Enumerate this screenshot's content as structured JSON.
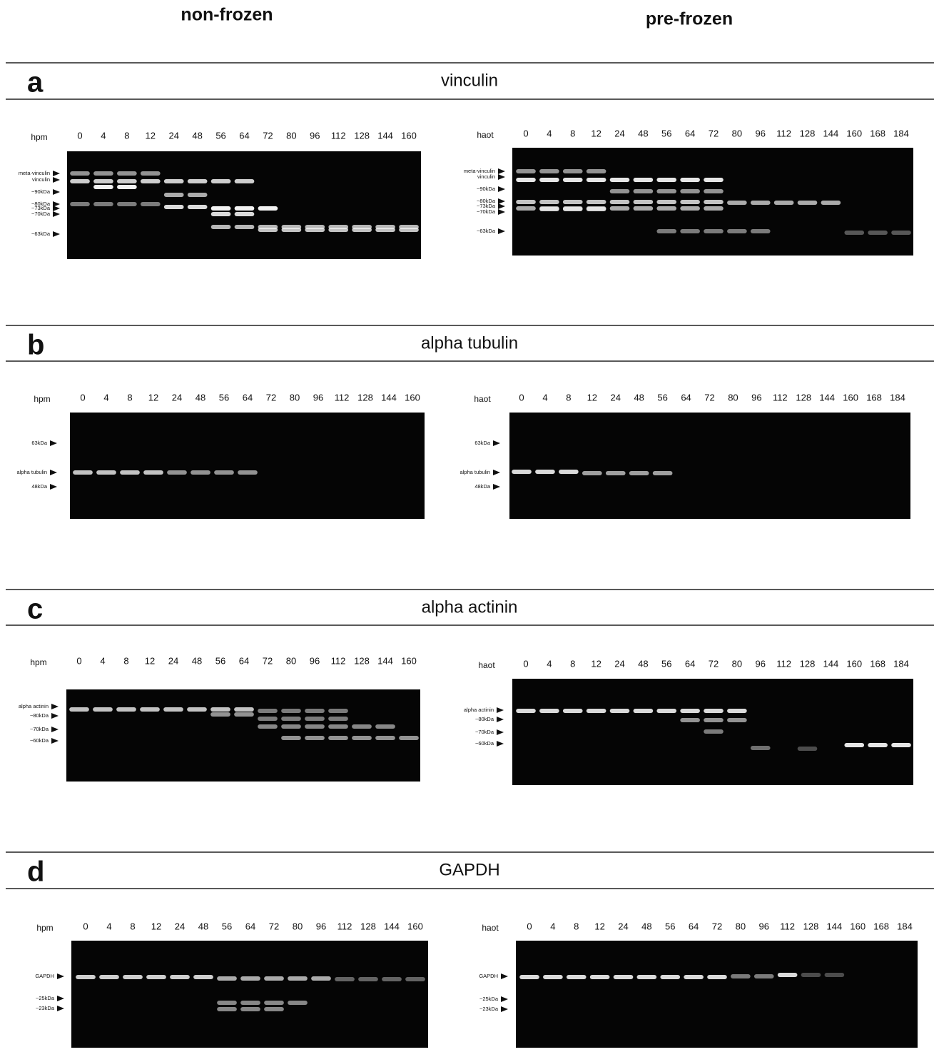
{
  "columns": [
    "non-frozen",
    "pre-frozen"
  ],
  "panels": [
    {
      "letter": "a",
      "title": "vinculin",
      "blots": [
        {
          "time_label": "hpm",
          "lanes": [
            0,
            4,
            8,
            12,
            24,
            48,
            56,
            64,
            72,
            80,
            96,
            112,
            128,
            144,
            160
          ],
          "markers": [
            "meta-vinculin",
            "vinculin",
            "~90kDa",
            "~80kDa",
            "~73kDa",
            "~70kDa",
            "~63kDa"
          ]
        },
        {
          "time_label": "haot",
          "lanes": [
            0,
            4,
            8,
            12,
            24,
            48,
            56,
            64,
            72,
            80,
            96,
            112,
            128,
            144,
            160,
            168,
            184
          ],
          "markers": [
            "meta-vinculin",
            "vinculin",
            "~90kDa",
            "~80kDa",
            "~73kDa",
            "~70kDa",
            "~63kDa"
          ]
        }
      ]
    },
    {
      "letter": "b",
      "title": "alpha tubulin",
      "blots": [
        {
          "time_label": "hpm",
          "lanes": [
            0,
            4,
            8,
            12,
            24,
            48,
            56,
            64,
            72,
            80,
            96,
            112,
            128,
            144,
            160
          ],
          "markers": [
            "63kDa",
            "alpha tubulin",
            "48kDa"
          ]
        },
        {
          "time_label": "haot",
          "lanes": [
            0,
            4,
            8,
            12,
            24,
            48,
            56,
            64,
            72,
            80,
            96,
            112,
            128,
            144,
            160,
            168,
            184
          ],
          "markers": [
            "63kDa",
            "alpha tubulin",
            "48kDa"
          ]
        }
      ]
    },
    {
      "letter": "c",
      "title": "alpha actinin",
      "blots": [
        {
          "time_label": "hpm",
          "lanes": [
            0,
            4,
            8,
            12,
            24,
            48,
            56,
            64,
            72,
            80,
            96,
            112,
            128,
            144,
            160
          ],
          "markers": [
            "alpha actinin",
            "~80kDa",
            "~70kDa",
            "~60kDa"
          ]
        },
        {
          "time_label": "haot",
          "lanes": [
            0,
            4,
            8,
            12,
            24,
            48,
            56,
            64,
            72,
            80,
            96,
            112,
            128,
            144,
            160,
            168,
            184
          ],
          "markers": [
            "alpha actinin",
            "~80kDa",
            "~70kDa",
            "~60kDa"
          ]
        }
      ]
    },
    {
      "letter": "d",
      "title": "GAPDH",
      "blots": [
        {
          "time_label": "hpm",
          "lanes": [
            0,
            4,
            8,
            12,
            24,
            48,
            56,
            64,
            72,
            80,
            96,
            112,
            128,
            144,
            160
          ],
          "markers": [
            "GAPDH",
            "~25kDa",
            "~23kDa"
          ]
        },
        {
          "time_label": "haot",
          "lanes": [
            0,
            4,
            8,
            12,
            24,
            48,
            56,
            64,
            72,
            80,
            96,
            112,
            128,
            144,
            160,
            168,
            184
          ],
          "markers": [
            "GAPDH",
            "~25kDa",
            "~23kDa"
          ]
        }
      ]
    }
  ]
}
